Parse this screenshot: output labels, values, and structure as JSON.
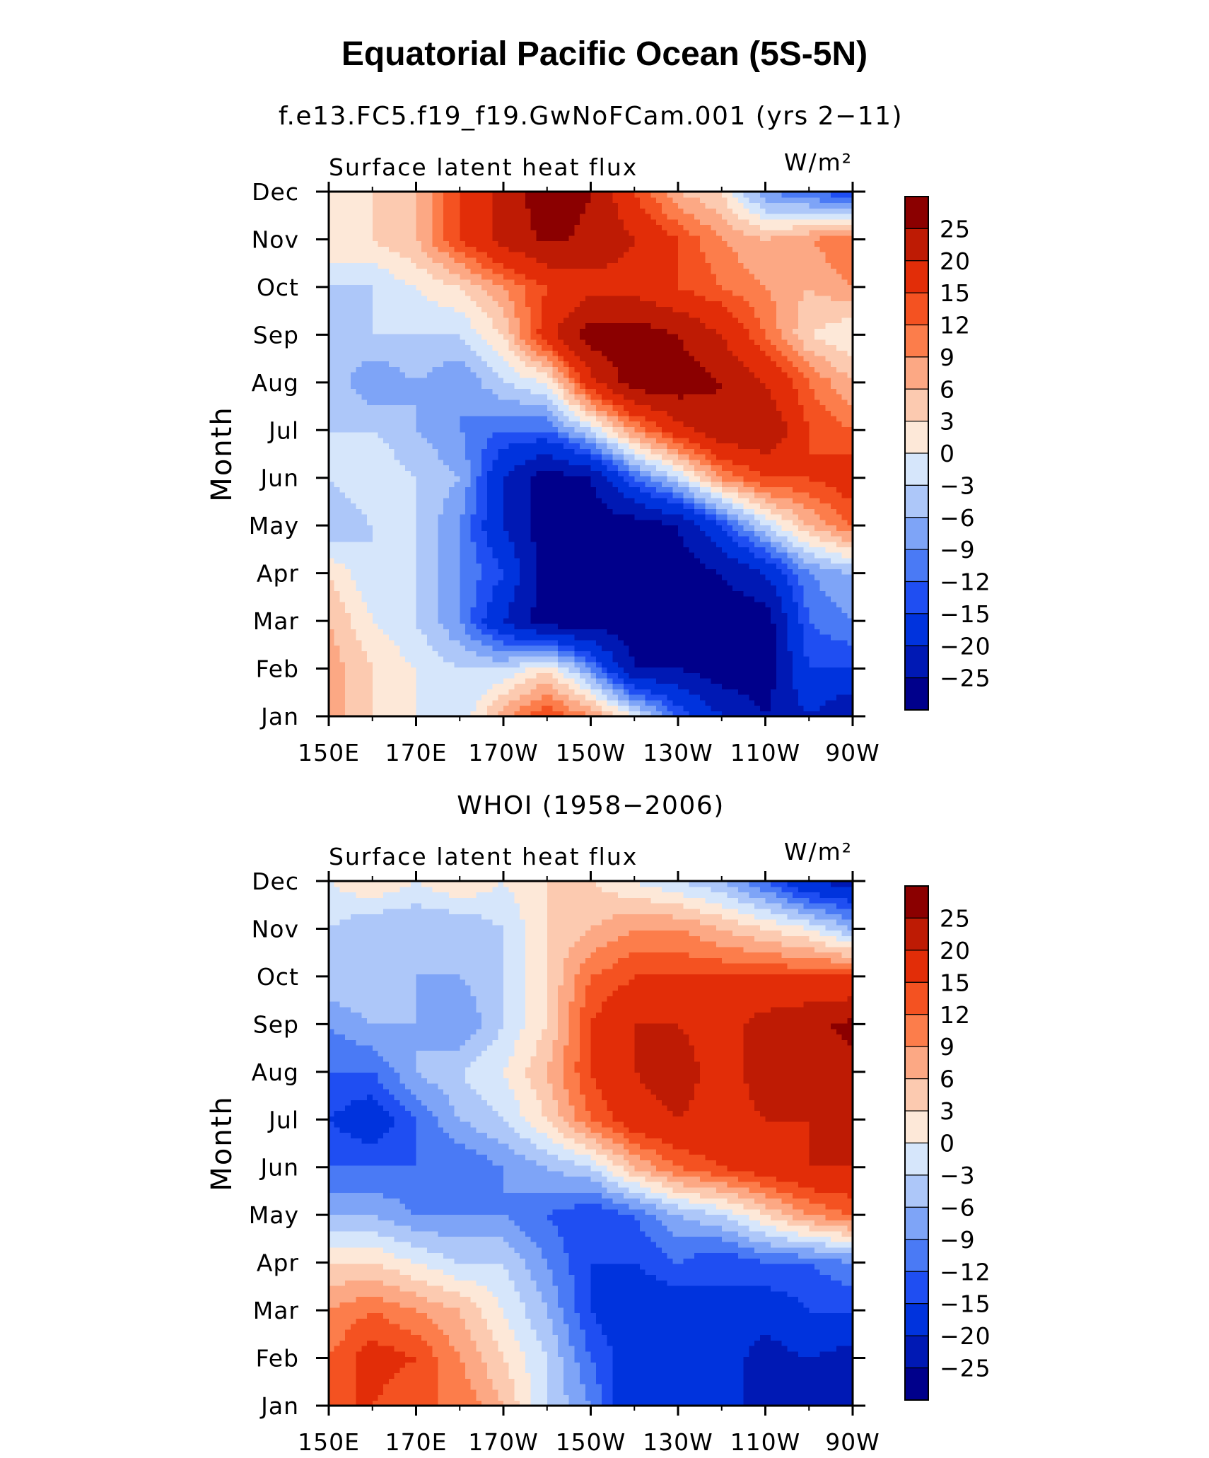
{
  "figure": {
    "title": "Equatorial Pacific Ocean (5S-5N)"
  },
  "chart_data": [
    {
      "type": "heatmap",
      "title": "f.e13.FC5.f19_f19.GwNoFCam.001 (yrs 2−11)",
      "left_label": "Surface latent heat flux",
      "units": "W/m²",
      "ylabel": "Month",
      "x_tick_labels": [
        "150E",
        "170E",
        "170W",
        "150W",
        "130W",
        "110W",
        "90W"
      ],
      "y_tick_labels": [
        "Jan",
        "Feb",
        "Mar",
        "Apr",
        "May",
        "Jun",
        "Jul",
        "Aug",
        "Sep",
        "Oct",
        "Nov",
        "Dec"
      ],
      "longitudes_deg_east": [
        150,
        160,
        170,
        180,
        190,
        200,
        210,
        220,
        230,
        240,
        250,
        260,
        270
      ],
      "months": [
        "Jan",
        "Feb",
        "Mar",
        "Apr",
        "May",
        "Jun",
        "Jul",
        "Aug",
        "Sep",
        "Oct",
        "Nov",
        "Dec"
      ],
      "values": [
        [
          8,
          3,
          0,
          -3,
          8,
          15,
          9,
          0,
          -12,
          -20,
          -25,
          -20,
          -25
        ],
        [
          8,
          3,
          0,
          -3,
          -3,
          3,
          -9,
          -25,
          -25,
          -28,
          -28,
          -15,
          -15
        ],
        [
          6,
          0,
          -3,
          -9,
          -20,
          -28,
          -28,
          -28,
          -28,
          -28,
          -28,
          -12,
          -9
        ],
        [
          3,
          -3,
          -3,
          -9,
          -15,
          -28,
          -28,
          -28,
          -28,
          -25,
          -20,
          -9,
          -6
        ],
        [
          -6,
          -3,
          -3,
          -9,
          -20,
          -28,
          -28,
          -28,
          -25,
          -15,
          -3,
          6,
          12
        ],
        [
          -3,
          0,
          -3,
          -6,
          -20,
          -28,
          -25,
          -12,
          -3,
          9,
          15,
          15,
          18
        ],
        [
          -3,
          -3,
          -6,
          -9,
          -12,
          -12,
          -3,
          9,
          18,
          24,
          25,
          15,
          12
        ],
        [
          -3,
          -9,
          -6,
          -9,
          -3,
          0,
          18,
          28,
          28,
          25,
          20,
          12,
          6
        ],
        [
          -6,
          -3,
          -3,
          -3,
          3,
          18,
          28,
          28,
          25,
          20,
          12,
          3,
          0
        ],
        [
          -3,
          -3,
          0,
          3,
          9,
          15,
          18,
          18,
          15,
          12,
          9,
          6,
          9
        ],
        [
          3,
          3,
          6,
          15,
          22,
          26,
          24,
          20,
          15,
          9,
          6,
          9,
          12
        ],
        [
          0,
          3,
          6,
          15,
          22,
          28,
          25,
          15,
          6,
          3,
          -9,
          -12,
          -15
        ]
      ],
      "contour_levels": [
        -25,
        -20,
        -15,
        -12,
        -9,
        -6,
        -3,
        0,
        3,
        6,
        9,
        12,
        15,
        20,
        25
      ],
      "colorbar_labels": [
        "25",
        "20",
        "15",
        "12",
        "9",
        "6",
        "3",
        "0",
        "−3",
        "−6",
        "−9",
        "−12",
        "−15",
        "−20",
        "−25"
      ],
      "colors": [
        "#00008b",
        "#0019b4",
        "#0033dd",
        "#1f4ef2",
        "#4a7af5",
        "#7ea4f7",
        "#adc7f9",
        "#d6e6fb",
        "#fde8d8",
        "#fccab0",
        "#fca884",
        "#fc7d4b",
        "#f45221",
        "#e22d08",
        "#be1b04",
        "#8b0000"
      ]
    },
    {
      "type": "heatmap",
      "title": "WHOI (1958−2006)",
      "left_label": "Surface latent heat flux",
      "units": "W/m²",
      "ylabel": "Month",
      "x_tick_labels": [
        "150E",
        "170E",
        "170W",
        "150W",
        "130W",
        "110W",
        "90W"
      ],
      "y_tick_labels": [
        "Jan",
        "Feb",
        "Mar",
        "Apr",
        "May",
        "Jun",
        "Jul",
        "Aug",
        "Sep",
        "Oct",
        "Nov",
        "Dec"
      ],
      "longitudes_deg_east": [
        150,
        160,
        170,
        180,
        190,
        200,
        210,
        220,
        230,
        240,
        250,
        260,
        270
      ],
      "months": [
        "Jan",
        "Feb",
        "Mar",
        "Apr",
        "May",
        "Jun",
        "Jul",
        "Aug",
        "Sep",
        "Oct",
        "Nov",
        "Dec"
      ],
      "values": [
        [
          15,
          15,
          12,
          12,
          6,
          -3,
          -9,
          -20,
          -20,
          -20,
          -20,
          -25,
          -25
        ],
        [
          12,
          17,
          15,
          9,
          3,
          -3,
          -12,
          -18,
          -20,
          -18,
          -22,
          -20,
          -22
        ],
        [
          9,
          12,
          9,
          6,
          0,
          -6,
          -15,
          -18,
          -18,
          -15,
          -18,
          -15,
          -15
        ],
        [
          3,
          3,
          0,
          -3,
          -3,
          -9,
          -15,
          -15,
          -12,
          -15,
          -12,
          -12,
          -9
        ],
        [
          -6,
          -6,
          -9,
          -9,
          -9,
          -12,
          -15,
          -12,
          -6,
          -3,
          3,
          9,
          12
        ],
        [
          -12,
          -12,
          -12,
          -12,
          -9,
          -6,
          -3,
          6,
          12,
          15,
          18,
          20,
          20
        ],
        [
          -15,
          -18,
          -12,
          -6,
          -3,
          3,
          12,
          18,
          20,
          18,
          20,
          20,
          20
        ],
        [
          -12,
          -12,
          -6,
          -3,
          0,
          6,
          15,
          20,
          22,
          18,
          22,
          22,
          24
        ],
        [
          -9,
          -6,
          -6,
          -9,
          -3,
          3,
          15,
          20,
          20,
          18,
          22,
          24,
          26
        ],
        [
          -3,
          -3,
          -6,
          -6,
          -3,
          3,
          12,
          15,
          15,
          15,
          15,
          15,
          15
        ],
        [
          -3,
          -6,
          -6,
          -6,
          -3,
          3,
          6,
          9,
          9,
          6,
          3,
          0,
          -6
        ],
        [
          0,
          3,
          0,
          3,
          0,
          3,
          3,
          0,
          -3,
          -6,
          -12,
          -20,
          -22
        ]
      ],
      "contour_levels": [
        -25,
        -20,
        -15,
        -12,
        -9,
        -6,
        -3,
        0,
        3,
        6,
        9,
        12,
        15,
        20,
        25
      ],
      "colorbar_labels": [
        "25",
        "20",
        "15",
        "12",
        "9",
        "6",
        "3",
        "0",
        "−3",
        "−6",
        "−9",
        "−12",
        "−15",
        "−20",
        "−25"
      ],
      "colors": [
        "#00008b",
        "#0019b4",
        "#0033dd",
        "#1f4ef2",
        "#4a7af5",
        "#7ea4f7",
        "#adc7f9",
        "#d6e6fb",
        "#fde8d8",
        "#fccab0",
        "#fca884",
        "#fc7d4b",
        "#f45221",
        "#e22d08",
        "#be1b04",
        "#8b0000"
      ]
    }
  ]
}
